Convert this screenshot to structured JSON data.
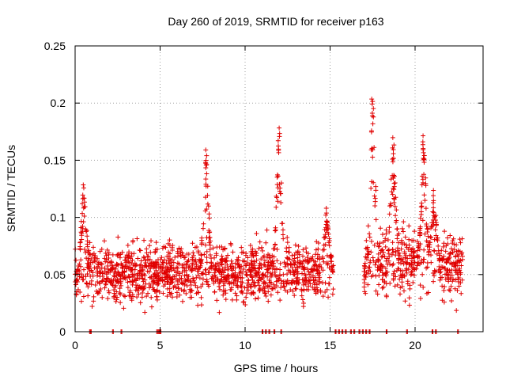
{
  "chart_data": {
    "type": "scatter",
    "title": "Day 260 of 2019, SRMTID for receiver p163",
    "xlabel": "GPS time / hours",
    "ylabel": "SRMTID / TECUs",
    "xlim": [
      0,
      24
    ],
    "ylim": [
      0,
      0.25
    ],
    "x_ticks": [
      0,
      5,
      10,
      15,
      20
    ],
    "x_tick_labels": [
      "0",
      "5",
      "10",
      "15",
      "20"
    ],
    "y_ticks": [
      0,
      0.05,
      0.1,
      0.15,
      0.2,
      0.25
    ],
    "y_tick_labels": [
      "0",
      "0.05",
      "0.1",
      "0.15",
      "0.2",
      "0.25"
    ],
    "grid": true,
    "marker": "plus",
    "color": "#e00000",
    "series": [
      {
        "name": "SRMTID",
        "segments": [
          {
            "x_start": 0.0,
            "x_end": 15.2,
            "baseline": 0.052,
            "spread": 0.022
          },
          {
            "x_start": 17.0,
            "x_end": 22.8,
            "baseline": 0.06,
            "spread": 0.025
          }
        ],
        "peaks": [
          {
            "x": 0.5,
            "y": 0.13
          },
          {
            "x": 7.7,
            "y": 0.16
          },
          {
            "x": 12.0,
            "y": 0.18
          },
          {
            "x": 14.8,
            "y": 0.11
          },
          {
            "x": 17.5,
            "y": 0.204
          },
          {
            "x": 18.7,
            "y": 0.17
          },
          {
            "x": 20.5,
            "y": 0.173
          },
          {
            "x": 21.1,
            "y": 0.125
          }
        ],
        "zero_points": [
          0.85,
          0.9,
          2.2,
          2.7,
          4.8,
          4.9,
          5.0,
          11.0,
          11.2,
          11.4,
          11.7,
          12.1,
          15.3,
          15.5,
          15.7,
          15.9,
          16.2,
          16.4,
          16.7,
          16.9,
          17.1,
          17.3,
          18.3,
          19.5,
          21.0,
          21.2,
          22.5
        ]
      }
    ]
  }
}
